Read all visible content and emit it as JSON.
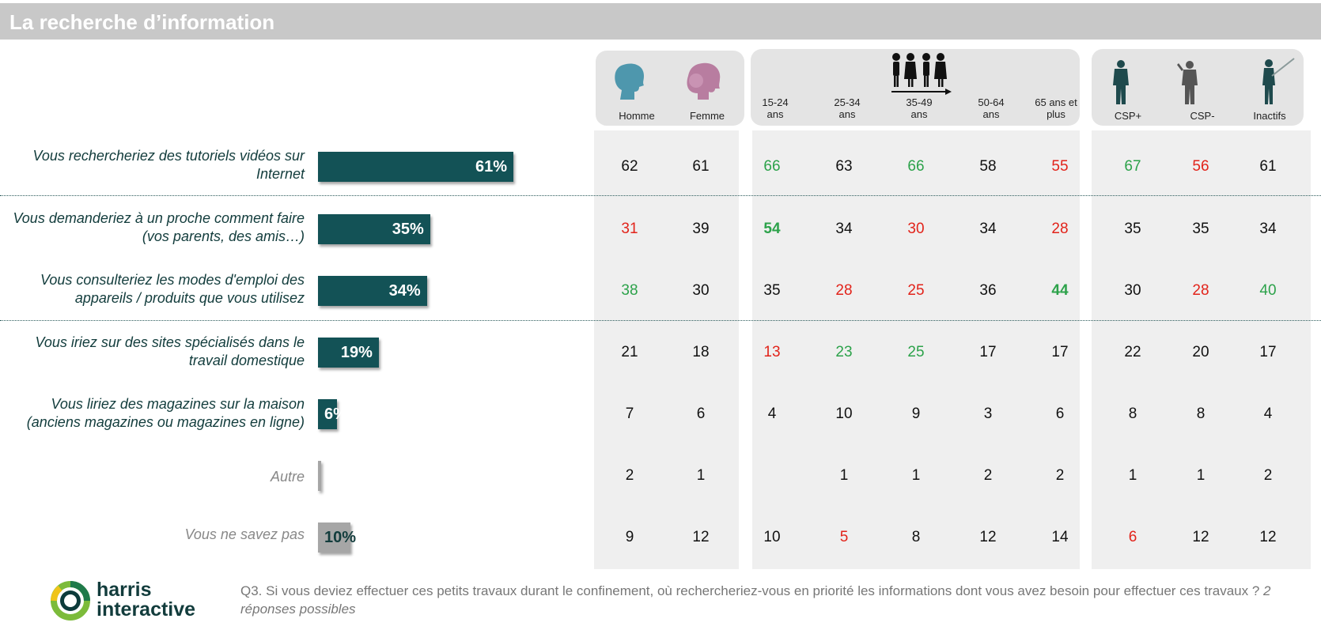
{
  "title": "La recherche d’information",
  "groups": {
    "gender": [
      {
        "label": "Homme",
        "icon": "man-head-icon",
        "color": "#4e97ad"
      },
      {
        "label": "Femme",
        "icon": "woman-head-icon",
        "color": "#b87da0"
      }
    ],
    "age_icon": "people-arrow-icon",
    "age": [
      "15-24\nans",
      "25-34\nans",
      "35-49\nans",
      "50-64\nans",
      "65 ans et\nplus"
    ],
    "csp": [
      {
        "label": "CSP+",
        "icon": "businessman-icon"
      },
      {
        "label": "CSP-",
        "icon": "worker-icon"
      },
      {
        "label": "Inactifs",
        "icon": "retiree-icon"
      }
    ]
  },
  "colors": {
    "bar": "#135256",
    "bar_grey": "#a6a6a6",
    "green": "#2ca24a",
    "red": "#e2231a",
    "text": "#111111"
  },
  "chart_data": {
    "type": "bar",
    "categories": [
      "Vous rechercheriez des tutoriels vidéos sur Internet",
      "Vous demanderiez à un proche comment faire (vos parents, des amis…)",
      "Vous consulteriez les modes d'emploi des appareils / produits que vous utilisez",
      "Vous iriez sur des sites spécialisés dans le travail domestique",
      "Vous liriez des magazines sur la maison (anciens magazines ou magazines en ligne)",
      "Autre",
      "Vous ne savez pas"
    ],
    "values": [
      61,
      35,
      34,
      19,
      6,
      1,
      10
    ],
    "value_labels": [
      "61%",
      "35%",
      "34%",
      "19%",
      "6%",
      "",
      "10%"
    ],
    "muted_rows": [
      5,
      6
    ],
    "table": {
      "columns": [
        "Homme",
        "Femme",
        "15-24 ans",
        "25-34 ans",
        "35-49 ans",
        "50-64 ans",
        "65 ans et plus",
        "CSP+",
        "CSP-",
        "Inactifs"
      ],
      "rows": [
        [
          "62",
          "61",
          "66",
          "63",
          "66",
          "58",
          "55",
          "67",
          "56",
          "61"
        ],
        [
          "31",
          "39",
          "54",
          "34",
          "30",
          "34",
          "28",
          "35",
          "35",
          "34"
        ],
        [
          "38",
          "30",
          "35",
          "28",
          "25",
          "36",
          "44",
          "30",
          "28",
          "40"
        ],
        [
          "21",
          "18",
          "13",
          "23",
          "25",
          "17",
          "17",
          "22",
          "20",
          "17"
        ],
        [
          "7",
          "6",
          "4",
          "10",
          "9",
          "3",
          "6",
          "8",
          "8",
          "4"
        ],
        [
          "2",
          "1",
          "",
          "1",
          "1",
          "2",
          "2",
          "1",
          "1",
          "2"
        ],
        [
          "9",
          "12",
          "10",
          "5",
          "8",
          "12",
          "14",
          "6",
          "12",
          "12"
        ]
      ],
      "highlight": [
        [
          "",
          "",
          "g",
          "",
          "g",
          "",
          "r",
          "g",
          "r",
          ""
        ],
        [
          "r",
          "",
          "G",
          "",
          "r",
          "",
          "r",
          "",
          "",
          ""
        ],
        [
          "g",
          "",
          "",
          "r",
          "r",
          "",
          "G",
          "",
          "r",
          "g"
        ],
        [
          "",
          "",
          "r",
          "g",
          "g",
          "",
          "",
          "",
          "",
          ""
        ],
        [
          "",
          "",
          "",
          "",
          "",
          "",
          "",
          "",
          "",
          ""
        ],
        [
          "",
          "",
          "",
          "",
          "",
          "",
          "",
          "",
          "",
          ""
        ],
        [
          "",
          "",
          "",
          "r",
          "",
          "",
          "",
          "r",
          "",
          ""
        ]
      ]
    }
  },
  "footer": {
    "brand_line1": "harris",
    "brand_line2": "interactive",
    "question": "Q3. Si vous deviez effectuer ces petits travaux durant le confinement, où rechercheriez-vous en priorité les informations dont vous avez besoin pour effectuer ces travaux ?",
    "question_note": "2 réponses possibles"
  }
}
